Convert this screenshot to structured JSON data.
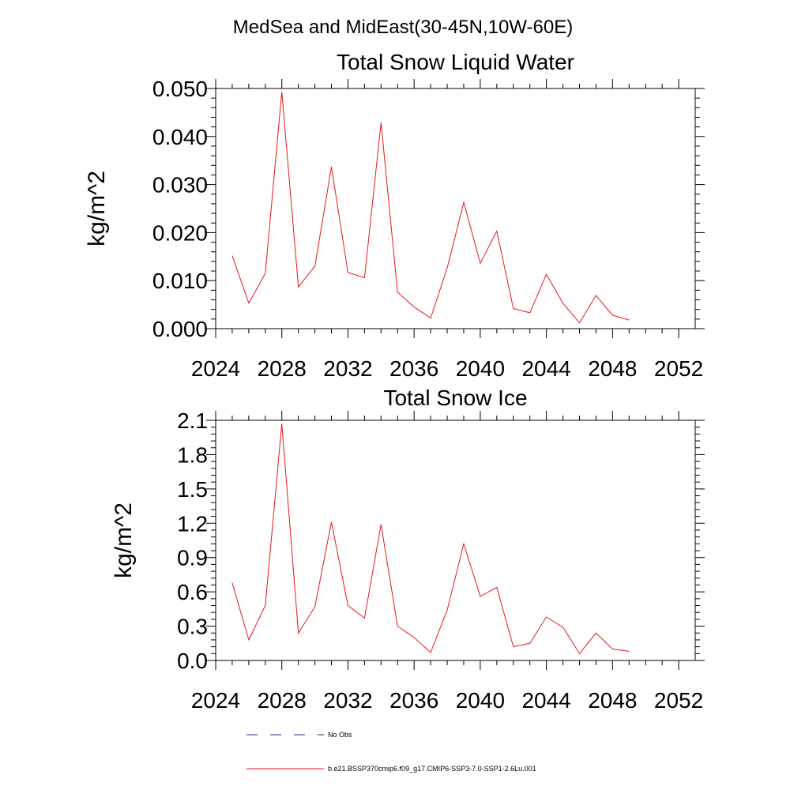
{
  "figure": {
    "suptitle": "MedSea and MidEast(30-45N,10W-60E)"
  },
  "legend": {
    "entries": [
      {
        "label": "No Obs",
        "color": "#2e2e8a",
        "style": "dashed"
      },
      {
        "label": "b.e21.BSSP370cmip6.f09_g17.CMIP6-SSP3-7.0-SSP1-2.6Lu.001",
        "color": "#e8161b",
        "style": "solid"
      }
    ]
  },
  "chart_data": [
    {
      "type": "line",
      "title": "Total Snow Liquid Water",
      "xlabel": "",
      "ylabel": "kg/m^2",
      "xlim": [
        2024,
        2053
      ],
      "ylim": [
        0,
        0.05
      ],
      "x_ticks": [
        "2024",
        "2028",
        "2032",
        "2036",
        "2040",
        "2044",
        "2048",
        "2052"
      ],
      "y_ticks": [
        "0.000",
        "0.010",
        "0.020",
        "0.030",
        "0.040",
        "0.050"
      ],
      "x": [
        2025,
        2026,
        2027,
        2028,
        2029,
        2030,
        2031,
        2032,
        2033,
        2034,
        2035,
        2036,
        2037,
        2038,
        2039,
        2040,
        2041,
        2042,
        2043,
        2044,
        2045,
        2046,
        2047,
        2048,
        2049
      ],
      "series": [
        {
          "name": "b.e21.BSSP370cmip6.f09_g17.CMIP6-SSP3-7.0-SSP1-2.6Lu.001",
          "color": "#e8161b",
          "values": [
            0.0152,
            0.0053,
            0.0115,
            0.0493,
            0.0087,
            0.013,
            0.0337,
            0.0117,
            0.0106,
            0.0429,
            0.0076,
            0.0045,
            0.0022,
            0.0126,
            0.0263,
            0.0136,
            0.0203,
            0.0042,
            0.0033,
            0.0113,
            0.0053,
            0.0012,
            0.0069,
            0.0028,
            0.0018
          ]
        }
      ]
    },
    {
      "type": "line",
      "title": "Total Snow Ice",
      "xlabel": "",
      "ylabel": "kg/m^2",
      "xlim": [
        2024,
        2053
      ],
      "ylim": [
        0,
        2.1
      ],
      "x_ticks": [
        "2024",
        "2028",
        "2032",
        "2036",
        "2040",
        "2044",
        "2048",
        "2052"
      ],
      "y_ticks": [
        "0.0",
        "0.3",
        "0.6",
        "0.9",
        "1.2",
        "1.5",
        "1.8",
        "2.1"
      ],
      "x": [
        2025,
        2026,
        2027,
        2028,
        2029,
        2030,
        2031,
        2032,
        2033,
        2034,
        2035,
        2036,
        2037,
        2038,
        2039,
        2040,
        2041,
        2042,
        2043,
        2044,
        2045,
        2046,
        2047,
        2048,
        2049
      ],
      "series": [
        {
          "name": "b.e21.BSSP370cmip6.f09_g17.CMIP6-SSP3-7.0-SSP1-2.6Lu.001",
          "color": "#e8161b",
          "values": [
            0.68,
            0.18,
            0.48,
            2.07,
            0.24,
            0.47,
            1.21,
            0.48,
            0.37,
            1.19,
            0.3,
            0.2,
            0.07,
            0.44,
            1.02,
            0.56,
            0.64,
            0.12,
            0.15,
            0.38,
            0.29,
            0.06,
            0.24,
            0.1,
            0.08
          ]
        }
      ]
    }
  ]
}
